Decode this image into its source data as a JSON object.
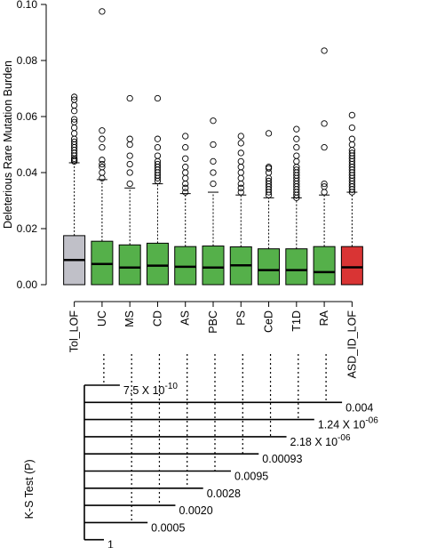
{
  "chart_data": [
    {
      "type": "box",
      "ylabel": "Deleterious Rare Mutation Burden",
      "ylim": [
        0,
        0.1
      ],
      "yticks": [
        "0.00",
        "0.02",
        "0.04",
        "0.06",
        "0.08",
        "0.10"
      ],
      "categories": [
        "Tol_LOF",
        "UC",
        "MS",
        "CD",
        "AS",
        "PBC",
        "PS",
        "CeD",
        "T1D",
        "RA",
        "ASD_ID_LOF"
      ],
      "colors": {
        "reference": "#c0c0c8",
        "disease": "#55b04a",
        "case": "#d93434"
      },
      "category_roles": [
        "reference",
        "disease",
        "disease",
        "disease",
        "disease",
        "disease",
        "disease",
        "disease",
        "disease",
        "disease",
        "case"
      ],
      "boxes": [
        {
          "median": 0.0088,
          "q1": 0.0,
          "q3": 0.0175,
          "whisker_hi": 0.0435,
          "outliers": [
            0.044,
            0.0445,
            0.045,
            0.046,
            0.047,
            0.048,
            0.049,
            0.05,
            0.051,
            0.052,
            0.054,
            0.056,
            0.058,
            0.059,
            0.062,
            0.064,
            0.066,
            0.067
          ]
        },
        {
          "median": 0.0074,
          "q1": 0.0,
          "q3": 0.0155,
          "whisker_hi": 0.0375,
          "outliers": [
            0.038,
            0.04,
            0.042,
            0.043,
            0.0445,
            0.049,
            0.052,
            0.055,
            0.0975
          ]
        },
        {
          "median": 0.0061,
          "q1": 0.0,
          "q3": 0.0142,
          "whisker_hi": 0.0345,
          "outliers": [
            0.036,
            0.04,
            0.043,
            0.046,
            0.05,
            0.052,
            0.0665
          ]
        },
        {
          "median": 0.0068,
          "q1": 0.0,
          "q3": 0.0148,
          "whisker_hi": 0.036,
          "outliers": [
            0.037,
            0.038,
            0.039,
            0.04,
            0.041,
            0.042,
            0.043,
            0.044,
            0.046,
            0.049,
            0.052,
            0.0665
          ]
        },
        {
          "median": 0.0064,
          "q1": 0.0,
          "q3": 0.0136,
          "whisker_hi": 0.0325,
          "outliers": [
            0.033,
            0.0345,
            0.036,
            0.038,
            0.04,
            0.042,
            0.045,
            0.049,
            0.053
          ]
        },
        {
          "median": 0.0061,
          "q1": 0.0,
          "q3": 0.0138,
          "whisker_hi": 0.033,
          "outliers": [
            0.036,
            0.04,
            0.044,
            0.05,
            0.0585
          ]
        },
        {
          "median": 0.0069,
          "q1": 0.0,
          "q3": 0.0135,
          "whisker_hi": 0.032,
          "outliers": [
            0.033,
            0.0345,
            0.036,
            0.038,
            0.04,
            0.042,
            0.044,
            0.047,
            0.0505,
            0.053
          ]
        },
        {
          "median": 0.0052,
          "q1": 0.0,
          "q3": 0.0128,
          "whisker_hi": 0.031,
          "outliers": [
            0.032,
            0.033,
            0.034,
            0.035,
            0.036,
            0.037,
            0.038,
            0.04,
            0.0415,
            0.042,
            0.054
          ]
        },
        {
          "median": 0.0052,
          "q1": 0.0,
          "q3": 0.0128,
          "whisker_hi": 0.031,
          "outliers": [
            0.031,
            0.032,
            0.033,
            0.034,
            0.035,
            0.036,
            0.037,
            0.038,
            0.039,
            0.04,
            0.041,
            0.042,
            0.044,
            0.046,
            0.049,
            0.052,
            0.0555
          ]
        },
        {
          "median": 0.0045,
          "q1": 0.0,
          "q3": 0.0136,
          "whisker_hi": 0.032,
          "outliers": [
            0.033,
            0.035,
            0.036,
            0.049,
            0.0575,
            0.0835
          ]
        },
        {
          "median": 0.0062,
          "q1": 0.0,
          "q3": 0.0136,
          "whisker_hi": 0.033,
          "outliers": [
            0.033,
            0.034,
            0.035,
            0.036,
            0.037,
            0.038,
            0.039,
            0.04,
            0.041,
            0.042,
            0.043,
            0.044,
            0.045,
            0.046,
            0.047,
            0.048,
            0.05,
            0.052,
            0.056,
            0.0605
          ]
        }
      ]
    },
    {
      "type": "dendrogram",
      "ylabel": "K-S Test (P)",
      "comparisons": [
        {
          "category": "UC",
          "p_mantissa": "7.5 X 10",
          "p_exponent": "-10"
        },
        {
          "category": "RA",
          "p_mantissa": "0.004",
          "p_exponent": ""
        },
        {
          "category": "T1D",
          "p_mantissa": "1.24 X 10",
          "p_exponent": "-06"
        },
        {
          "category": "CeD",
          "p_mantissa": "2.18 X 10",
          "p_exponent": "-06"
        },
        {
          "category": "PS",
          "p_mantissa": "0.00093",
          "p_exponent": ""
        },
        {
          "category": "PBC",
          "p_mantissa": "0.0095",
          "p_exponent": ""
        },
        {
          "category": "AS",
          "p_mantissa": "0.0028",
          "p_exponent": ""
        },
        {
          "category": "CD",
          "p_mantissa": "0.0020",
          "p_exponent": ""
        },
        {
          "category": "MS",
          "p_mantissa": "0.0005",
          "p_exponent": ""
        },
        {
          "category": "UC",
          "p_mantissa": "1",
          "p_exponent": ""
        }
      ]
    }
  ]
}
